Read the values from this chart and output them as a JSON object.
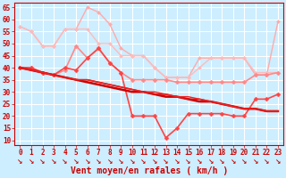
{
  "background_color": "#cceeff",
  "grid_color": "#ffffff",
  "x_labels": [
    "0",
    "1",
    "2",
    "3",
    "4",
    "5",
    "6",
    "7",
    "8",
    "9",
    "10",
    "11",
    "12",
    "13",
    "14",
    "15",
    "16",
    "17",
    "18",
    "19",
    "20",
    "21",
    "22",
    "23"
  ],
  "xlabel": "Vent moyen/en rafales ( km/h )",
  "ylim": [
    8,
    67
  ],
  "yticks": [
    10,
    15,
    20,
    25,
    30,
    35,
    40,
    45,
    50,
    55,
    60,
    65
  ],
  "series": [
    {
      "name": "light_pink_top",
      "color": "#ffaaaa",
      "linewidth": 1.0,
      "marker": "D",
      "markersize": 2.0,
      "data": [
        57,
        55,
        49,
        49,
        56,
        56,
        65,
        63,
        58,
        48,
        45,
        45,
        40,
        36,
        36,
        36,
        44,
        44,
        44,
        44,
        44,
        37,
        37,
        59
      ]
    },
    {
      "name": "medium_pink_flat",
      "color": "#ffbbbb",
      "linewidth": 1.0,
      "marker": "D",
      "markersize": 2.0,
      "data": [
        57,
        55,
        49,
        49,
        56,
        56,
        56,
        50,
        50,
        45,
        45,
        45,
        40,
        36,
        36,
        36,
        40,
        44,
        44,
        44,
        44,
        38,
        38,
        38
      ]
    },
    {
      "name": "pink_with_markers_upper",
      "color": "#ff8888",
      "linewidth": 1.2,
      "marker": "D",
      "markersize": 2.5,
      "data": [
        40,
        40,
        38,
        37,
        39,
        49,
        44,
        48,
        42,
        38,
        35,
        35,
        35,
        35,
        34,
        34,
        34,
        34,
        34,
        34,
        34,
        37,
        37,
        38
      ]
    },
    {
      "name": "red_with_markers_volatile",
      "color": "#ff4444",
      "linewidth": 1.2,
      "marker": "D",
      "markersize": 2.5,
      "data": [
        40,
        40,
        38,
        37,
        40,
        39,
        44,
        48,
        42,
        38,
        20,
        20,
        20,
        11,
        15,
        21,
        21,
        21,
        21,
        20,
        20,
        27,
        27,
        29
      ]
    },
    {
      "name": "dark_red_line1",
      "color": "#cc0000",
      "linewidth": 1.8,
      "marker": null,
      "markersize": 0,
      "data": [
        40,
        39,
        38,
        37,
        36,
        35,
        34,
        33,
        32,
        31,
        30,
        30,
        29,
        28,
        28,
        27,
        26,
        26,
        25,
        24,
        23,
        23,
        22,
        22
      ]
    },
    {
      "name": "dark_red_line2",
      "color": "#dd1111",
      "linewidth": 1.2,
      "marker": null,
      "markersize": 0,
      "data": [
        40,
        39,
        38,
        37,
        36,
        35,
        35,
        34,
        33,
        32,
        31,
        30,
        29,
        29,
        28,
        27,
        27,
        26,
        25,
        24,
        23,
        23,
        22,
        22
      ]
    },
    {
      "name": "dark_red_line3",
      "color": "#ee2222",
      "linewidth": 1.0,
      "marker": null,
      "markersize": 0,
      "data": [
        40,
        39,
        38,
        37,
        36,
        35,
        35,
        34,
        33,
        32,
        31,
        30,
        30,
        29,
        28,
        28,
        27,
        26,
        25,
        24,
        23,
        23,
        22,
        22
      ]
    }
  ],
  "axis_label_fontsize": 7,
  "tick_fontsize": 5.5
}
